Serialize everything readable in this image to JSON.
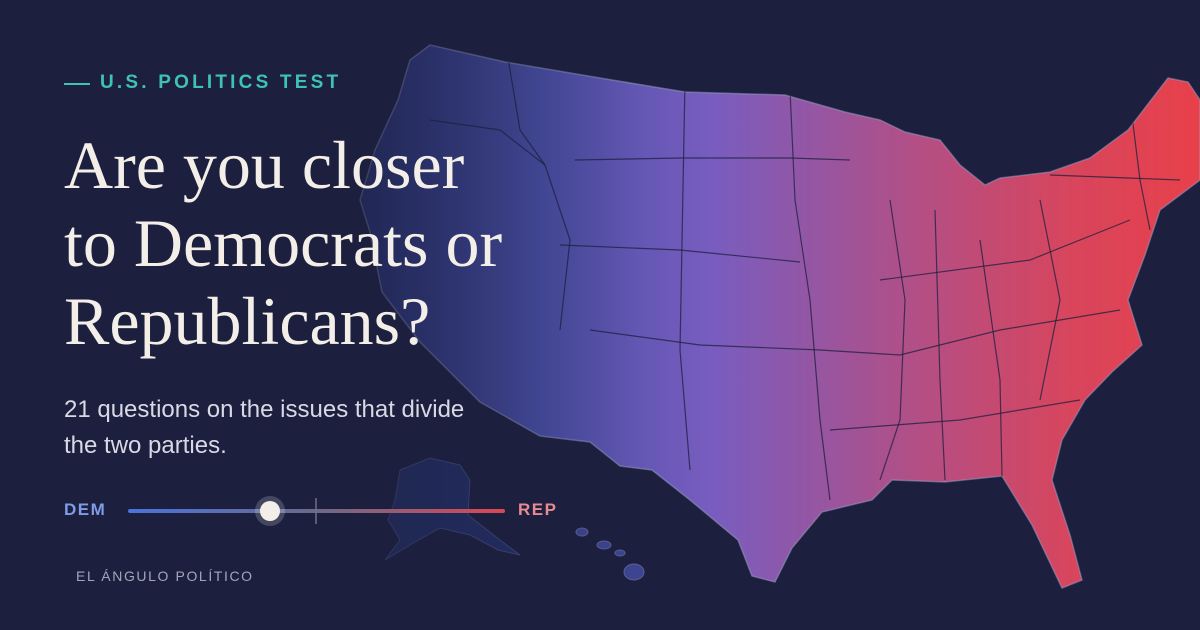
{
  "kicker": "U.S. POLITICS TEST",
  "headline": [
    "Are you closer",
    "to Democrats or",
    "Republicans?"
  ],
  "subtitle": [
    "21 questions on the issues that divide",
    "the two parties."
  ],
  "slider": {
    "left_label": "DEM",
    "right_label": "REP"
  },
  "footer": "EL ÁNGULO POLÍTICO"
}
